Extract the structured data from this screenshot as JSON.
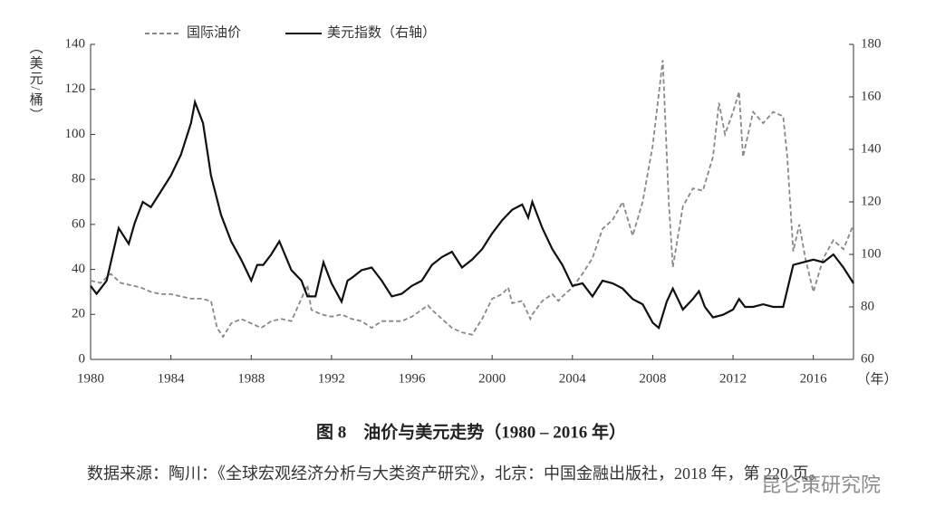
{
  "chart_data": {
    "type": "line",
    "title": "图 8　油价与美元走势（1980 – 2016 年）",
    "y_label": "（美元/桶）",
    "x_unit": "（年）",
    "note": "数据来源：陶川：《全球宏观经济分析与大类资产研究》，北京：中国金融出版社，2018 年，第 220 页。",
    "watermark": "昆仑策研究院",
    "xlim": [
      1980,
      2018
    ],
    "xticks": [
      1980,
      1984,
      1988,
      1992,
      1996,
      2000,
      2004,
      2008,
      2012,
      2016
    ],
    "ylim": [
      0,
      140
    ],
    "yticks": [
      0,
      20,
      40,
      60,
      80,
      100,
      120,
      140
    ],
    "y2lim": [
      60,
      180
    ],
    "y2ticks": [
      60,
      80,
      100,
      120,
      140,
      160,
      180
    ],
    "series": [
      {
        "name": "国际油价",
        "color": "#888888",
        "dashed": true,
        "x": [
          1980,
          1980.5,
          1981,
          1981.5,
          1982,
          1982.5,
          1983,
          1983.5,
          1984,
          1984.5,
          1985,
          1985.5,
          1986,
          1986.3,
          1986.6,
          1987,
          1987.5,
          1988,
          1988.5,
          1989,
          1989.5,
          1990,
          1990.8,
          1991,
          1991.5,
          1992,
          1992.5,
          1993,
          1993.5,
          1994,
          1994.5,
          1995,
          1995.5,
          1996,
          1996.8,
          1997,
          1997.5,
          1998,
          1998.5,
          1999,
          1999.5,
          2000,
          2000.5,
          2000.8,
          2001,
          2001.5,
          2001.9,
          2002,
          2002.5,
          2003,
          2003.3,
          2003.5,
          2004,
          2004.5,
          2005,
          2005.5,
          2006,
          2006.5,
          2007,
          2007.5,
          2008,
          2008.5,
          2008.8,
          2009,
          2009.5,
          2010,
          2010.5,
          2011,
          2011.3,
          2011.6,
          2012,
          2012.3,
          2012.5,
          2013,
          2013.5,
          2014,
          2014.5,
          2014.7,
          2015,
          2015.3,
          2015.6,
          2016,
          2016.5,
          2017,
          2017.5,
          2018
        ],
        "values": [
          35,
          34,
          38,
          34,
          33,
          32,
          30,
          29,
          29,
          28,
          27,
          27,
          26,
          14,
          10,
          16,
          18,
          16,
          14,
          17,
          18,
          17,
          33,
          22,
          20,
          19,
          20,
          18,
          17,
          14,
          17,
          17,
          17,
          19,
          24,
          22,
          18,
          14,
          12,
          11,
          18,
          27,
          29,
          32,
          25,
          26,
          18,
          20,
          26,
          29,
          26,
          28,
          32,
          38,
          45,
          58,
          62,
          70,
          55,
          70,
          95,
          133,
          70,
          41,
          68,
          76,
          75,
          90,
          114,
          100,
          110,
          119,
          90,
          110,
          105,
          110,
          108,
          90,
          48,
          60,
          45,
          30,
          45,
          53,
          49,
          60
        ]
      },
      {
        "name": "美元指数（右轴）",
        "color": "#111111",
        "dashed": false,
        "axis": "y2",
        "x": [
          1980,
          1980.3,
          1980.8,
          1981.4,
          1981.9,
          1982.2,
          1982.6,
          1983,
          1983.5,
          1984,
          1984.5,
          1985,
          1985.2,
          1985.6,
          1986,
          1986.5,
          1987,
          1987.5,
          1988,
          1988.3,
          1988.6,
          1989,
          1989.4,
          1990,
          1990.5,
          1990.8,
          1991.2,
          1991.6,
          1992,
          1992.5,
          1992.8,
          1993,
          1993.5,
          1994,
          1994.5,
          1995,
          1995.5,
          1996,
          1996.5,
          1997,
          1997.5,
          1998,
          1998.5,
          1999,
          1999.5,
          2000,
          2000.5,
          2001,
          2001.5,
          2001.8,
          2002,
          2002.5,
          2003,
          2003.5,
          2004,
          2004.5,
          2005,
          2005.5,
          2006,
          2006.5,
          2007,
          2007.5,
          2008,
          2008.3,
          2008.7,
          2009,
          2009.5,
          2010,
          2010.3,
          2010.6,
          2011,
          2011.5,
          2012,
          2012.3,
          2012.6,
          2013,
          2013.5,
          2014,
          2014.5,
          2015,
          2015.5,
          2016,
          2016.5,
          2017,
          2017.5,
          2018
        ],
        "values": [
          88,
          85,
          90,
          110,
          104,
          112,
          120,
          118,
          124,
          130,
          138,
          150,
          158,
          150,
          130,
          115,
          105,
          98,
          90,
          96,
          96,
          100,
          105,
          94,
          90,
          84,
          84,
          97,
          89,
          82,
          90,
          91,
          94,
          95,
          90,
          84,
          85,
          88,
          90,
          96,
          99,
          101,
          95,
          98,
          102,
          108,
          113,
          117,
          119,
          114,
          120,
          110,
          102,
          96,
          88,
          89,
          84,
          90,
          89,
          87,
          83,
          81,
          74,
          72,
          82,
          87,
          79,
          83,
          86,
          80,
          76,
          77,
          79,
          83,
          80,
          80,
          81,
          80,
          80,
          96,
          97,
          98,
          97,
          100,
          95,
          89
        ]
      }
    ]
  }
}
